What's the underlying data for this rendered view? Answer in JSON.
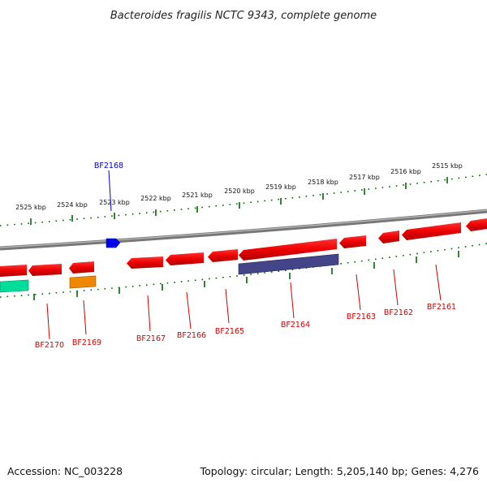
{
  "title": "Bacteroides fragilis NCTC 9343, complete genome",
  "footer": {
    "accession": "Accession: NC_003228",
    "summary": "Topology: circular; Length: 5,205,140 bp; Genes: 4,276"
  },
  "ruler": {
    "ticks": [
      {
        "label": "2525 kbp",
        "kbp": 2525
      },
      {
        "label": "2524 kbp",
        "kbp": 2524
      },
      {
        "label": "2523 kbp",
        "kbp": 2523
      },
      {
        "label": "2522 kbp",
        "kbp": 2522
      },
      {
        "label": "2521 kbp",
        "kbp": 2521
      },
      {
        "label": "2520 kbp",
        "kbp": 2520
      },
      {
        "label": "2519 kbp",
        "kbp": 2519
      },
      {
        "label": "2518 kbp",
        "kbp": 2518
      },
      {
        "label": "2517 kbp",
        "kbp": 2517
      },
      {
        "label": "2516 kbp",
        "kbp": 2516
      },
      {
        "label": "2515 kbp",
        "kbp": 2515
      }
    ]
  },
  "genes": [
    {
      "name": "BF2170"
    },
    {
      "name": "BF2169"
    },
    {
      "name": "BF2168"
    },
    {
      "name": "BF2167"
    },
    {
      "name": "BF2166"
    },
    {
      "name": "BF2165"
    },
    {
      "name": "BF2164"
    },
    {
      "name": "BF2163"
    },
    {
      "name": "BF2162"
    },
    {
      "name": "BF2161"
    }
  ],
  "colors": {
    "cds": "#ee0000",
    "cds_forward": "#0000ee",
    "rrna_like": "#ee8800",
    "teal_feature": "#00dd99",
    "purple_feature": "#444488",
    "backbone": "#808080",
    "ruler": "#006600",
    "label_red": "#cc0000",
    "label_blue": "#0000cc"
  }
}
